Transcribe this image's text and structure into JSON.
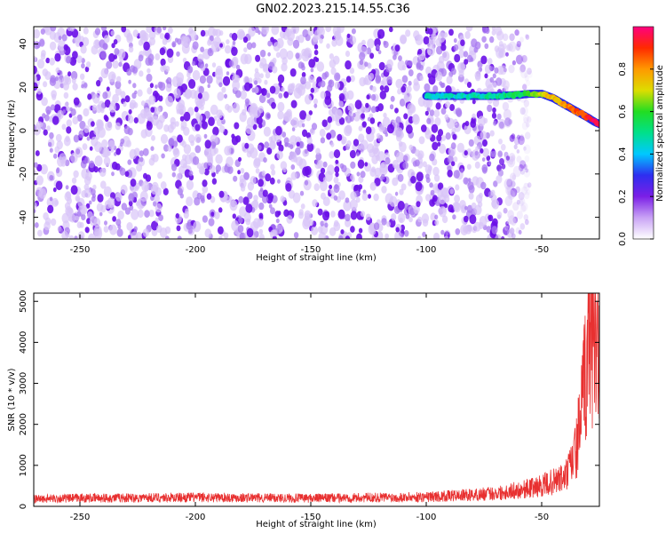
{
  "title": "GN02.2023.215.14.55.C36",
  "chart_data": [
    {
      "type": "heatmap",
      "xlabel": "Height of straight line (km)",
      "ylabel": "Frequency (Hz)",
      "xlim": [
        -270,
        -25
      ],
      "ylim": [
        -50,
        48
      ],
      "xticks": [
        -250,
        -200,
        -150,
        -100,
        -50
      ],
      "yticks": [
        -40,
        -20,
        0,
        20,
        40
      ],
      "colorbar": {
        "label": "Normalized spectral amplitude",
        "range": [
          0.0,
          1.0
        ],
        "ticks": [
          0.0,
          0.2,
          0.4,
          0.6,
          0.8
        ],
        "colors": [
          "#ffffff",
          "#c9a3f5",
          "#7b1fe6",
          "#2e2ef0",
          "#00c8ff",
          "#00e08a",
          "#22dd22",
          "#dddd00",
          "#ff9900",
          "#ff2a00",
          "#ff007f"
        ]
      },
      "noise_extent_x": [
        -270,
        -55
      ],
      "signal_trace": {
        "x": [
          -100,
          -90,
          -80,
          -70,
          -60,
          -55,
          -50,
          -45,
          -40,
          -35,
          -30,
          -27,
          -25
        ],
        "y": [
          16,
          16,
          16,
          16,
          16.5,
          17,
          17,
          15,
          12,
          9,
          6,
          4,
          3
        ],
        "amplitude": [
          0.45,
          0.45,
          0.45,
          0.5,
          0.55,
          0.6,
          0.7,
          0.75,
          0.8,
          0.85,
          0.9,
          0.95,
          0.98
        ]
      }
    },
    {
      "type": "line",
      "xlabel": "Height of straight line (km)",
      "ylabel": "SNR (10 * v/v)",
      "xlim": [
        -270,
        -25
      ],
      "ylim": [
        0,
        5200
      ],
      "xticks": [
        -250,
        -200,
        -150,
        -100,
        -50
      ],
      "yticks": [
        0,
        1000,
        2000,
        3000,
        4000,
        5000
      ],
      "color": "#e83030",
      "series": [
        {
          "x": [
            -270,
            -250,
            -200,
            -150,
            -100,
            -80,
            -70,
            -60,
            -55,
            -50,
            -45,
            -40,
            -38,
            -35,
            -33,
            -31,
            -30,
            -29,
            -28,
            -27,
            -26,
            -25
          ],
          "y": [
            180,
            200,
            220,
            200,
            230,
            280,
            320,
            400,
            450,
            500,
            600,
            700,
            900,
            1400,
            2200,
            3200,
            3600,
            4900,
            4100,
            4600,
            3800,
            3200
          ]
        }
      ]
    }
  ]
}
